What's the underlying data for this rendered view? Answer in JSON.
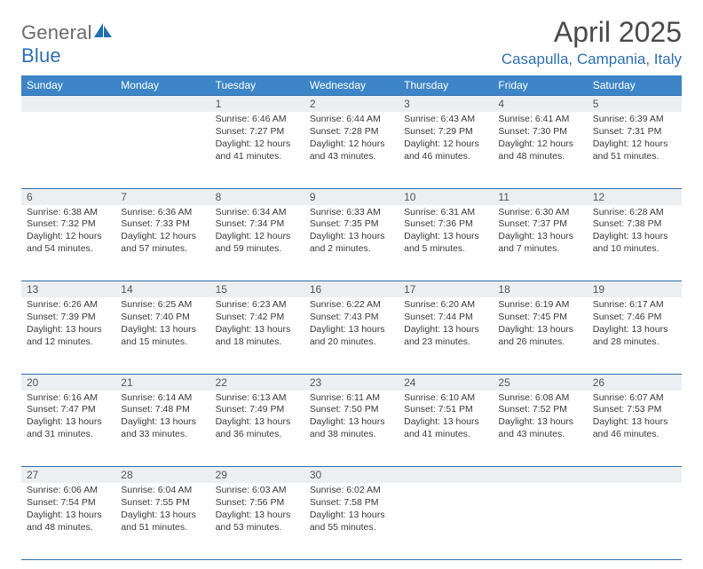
{
  "logo": {
    "textGray": "General",
    "textBlue": "Blue"
  },
  "title": "April 2025",
  "location": "Casapulla, Campania, Italy",
  "weekday_header_bg": "#3d85c6",
  "weekday_header_fg": "#ffffff",
  "rule_color": "#2f6fb0",
  "daynum_bg": "#eceff1",
  "weekdays": [
    "Sunday",
    "Monday",
    "Tuesday",
    "Wednesday",
    "Thursday",
    "Friday",
    "Saturday"
  ],
  "weeks": [
    [
      null,
      null,
      {
        "n": "1",
        "sr": "6:46 AM",
        "ss": "7:27 PM",
        "dl": "12 hours and 41 minutes."
      },
      {
        "n": "2",
        "sr": "6:44 AM",
        "ss": "7:28 PM",
        "dl": "12 hours and 43 minutes."
      },
      {
        "n": "3",
        "sr": "6:43 AM",
        "ss": "7:29 PM",
        "dl": "12 hours and 46 minutes."
      },
      {
        "n": "4",
        "sr": "6:41 AM",
        "ss": "7:30 PM",
        "dl": "12 hours and 48 minutes."
      },
      {
        "n": "5",
        "sr": "6:39 AM",
        "ss": "7:31 PM",
        "dl": "12 hours and 51 minutes."
      }
    ],
    [
      {
        "n": "6",
        "sr": "6:38 AM",
        "ss": "7:32 PM",
        "dl": "12 hours and 54 minutes."
      },
      {
        "n": "7",
        "sr": "6:36 AM",
        "ss": "7:33 PM",
        "dl": "12 hours and 57 minutes."
      },
      {
        "n": "8",
        "sr": "6:34 AM",
        "ss": "7:34 PM",
        "dl": "12 hours and 59 minutes."
      },
      {
        "n": "9",
        "sr": "6:33 AM",
        "ss": "7:35 PM",
        "dl": "13 hours and 2 minutes."
      },
      {
        "n": "10",
        "sr": "6:31 AM",
        "ss": "7:36 PM",
        "dl": "13 hours and 5 minutes."
      },
      {
        "n": "11",
        "sr": "6:30 AM",
        "ss": "7:37 PM",
        "dl": "13 hours and 7 minutes."
      },
      {
        "n": "12",
        "sr": "6:28 AM",
        "ss": "7:38 PM",
        "dl": "13 hours and 10 minutes."
      }
    ],
    [
      {
        "n": "13",
        "sr": "6:26 AM",
        "ss": "7:39 PM",
        "dl": "13 hours and 12 minutes."
      },
      {
        "n": "14",
        "sr": "6:25 AM",
        "ss": "7:40 PM",
        "dl": "13 hours and 15 minutes."
      },
      {
        "n": "15",
        "sr": "6:23 AM",
        "ss": "7:42 PM",
        "dl": "13 hours and 18 minutes."
      },
      {
        "n": "16",
        "sr": "6:22 AM",
        "ss": "7:43 PM",
        "dl": "13 hours and 20 minutes."
      },
      {
        "n": "17",
        "sr": "6:20 AM",
        "ss": "7:44 PM",
        "dl": "13 hours and 23 minutes."
      },
      {
        "n": "18",
        "sr": "6:19 AM",
        "ss": "7:45 PM",
        "dl": "13 hours and 26 minutes."
      },
      {
        "n": "19",
        "sr": "6:17 AM",
        "ss": "7:46 PM",
        "dl": "13 hours and 28 minutes."
      }
    ],
    [
      {
        "n": "20",
        "sr": "6:16 AM",
        "ss": "7:47 PM",
        "dl": "13 hours and 31 minutes."
      },
      {
        "n": "21",
        "sr": "6:14 AM",
        "ss": "7:48 PM",
        "dl": "13 hours and 33 minutes."
      },
      {
        "n": "22",
        "sr": "6:13 AM",
        "ss": "7:49 PM",
        "dl": "13 hours and 36 minutes."
      },
      {
        "n": "23",
        "sr": "6:11 AM",
        "ss": "7:50 PM",
        "dl": "13 hours and 38 minutes."
      },
      {
        "n": "24",
        "sr": "6:10 AM",
        "ss": "7:51 PM",
        "dl": "13 hours and 41 minutes."
      },
      {
        "n": "25",
        "sr": "6:08 AM",
        "ss": "7:52 PM",
        "dl": "13 hours and 43 minutes."
      },
      {
        "n": "26",
        "sr": "6:07 AM",
        "ss": "7:53 PM",
        "dl": "13 hours and 46 minutes."
      }
    ],
    [
      {
        "n": "27",
        "sr": "6:06 AM",
        "ss": "7:54 PM",
        "dl": "13 hours and 48 minutes."
      },
      {
        "n": "28",
        "sr": "6:04 AM",
        "ss": "7:55 PM",
        "dl": "13 hours and 51 minutes."
      },
      {
        "n": "29",
        "sr": "6:03 AM",
        "ss": "7:56 PM",
        "dl": "13 hours and 53 minutes."
      },
      {
        "n": "30",
        "sr": "6:02 AM",
        "ss": "7:58 PM",
        "dl": "13 hours and 55 minutes."
      },
      null,
      null,
      null
    ]
  ],
  "labels": {
    "sunrise": "Sunrise:",
    "sunset": "Sunset:",
    "daylight": "Daylight:"
  }
}
